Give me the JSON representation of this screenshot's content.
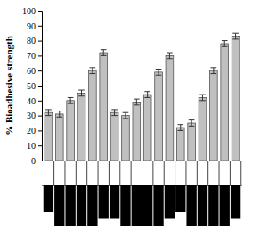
{
  "chart_data": {
    "type": "bar",
    "y_label": "% Bioadhesive strength",
    "categories": [
      null,
      null,
      null,
      null,
      null,
      null,
      null,
      null,
      null,
      null,
      null,
      null,
      null,
      null,
      null,
      null,
      null,
      null
    ],
    "values": [
      32,
      31,
      40,
      45,
      60,
      72,
      32,
      30,
      39,
      44,
      59,
      70,
      22,
      25,
      42,
      60,
      78,
      83
    ],
    "errors": [
      2,
      2,
      2,
      2,
      2,
      2,
      2,
      2,
      2,
      2,
      2,
      2,
      2,
      2,
      2,
      2,
      2,
      2
    ],
    "indicator": [
      2,
      3,
      3,
      3,
      3,
      2.5,
      2.5,
      3,
      3,
      3,
      3,
      2.5,
      2,
      3,
      3,
      3,
      3,
      2.5
    ],
    "indicator_lim": [
      0,
      3
    ],
    "color": "#c0c0c0",
    "indicator_color": "#000000",
    "ylim": [
      0,
      100
    ],
    "yticks": [
      0,
      10,
      20,
      30,
      40,
      50,
      60,
      70,
      80,
      90,
      100
    ],
    "tick_labels": "y",
    "grid": false
  }
}
